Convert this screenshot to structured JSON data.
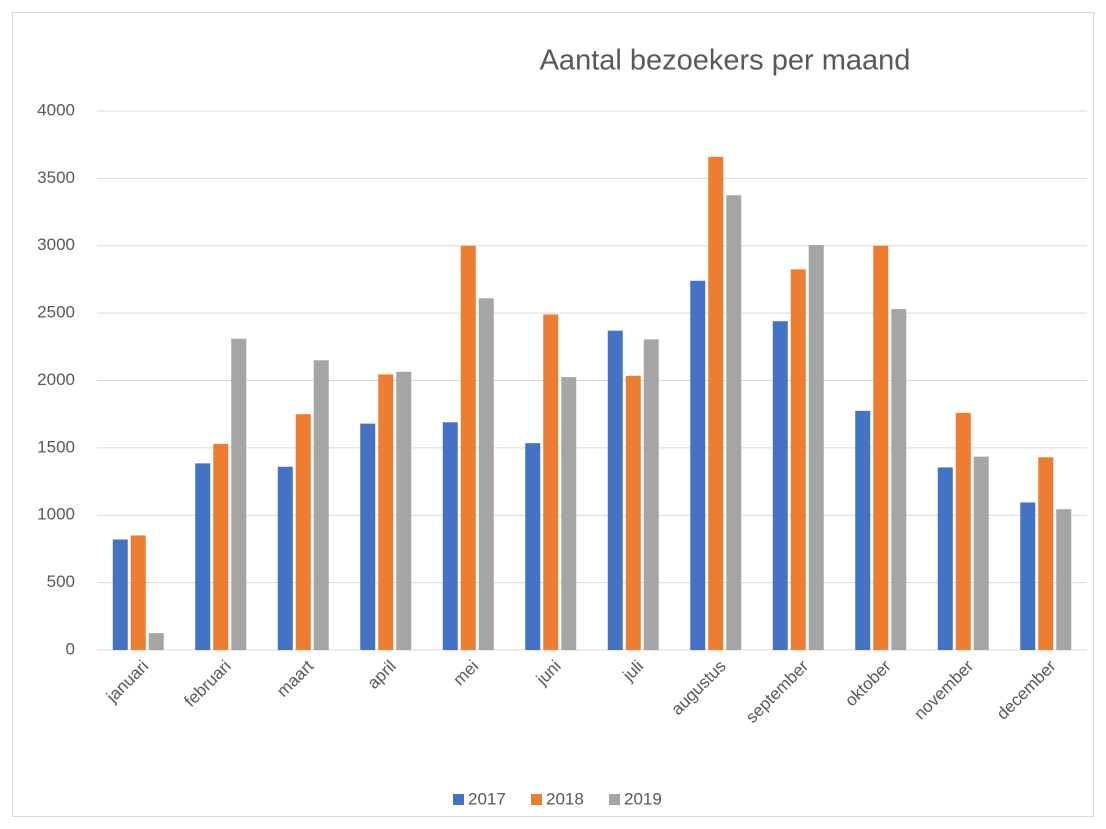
{
  "chart_data": {
    "type": "bar",
    "title": "Aantal bezoekers per maand",
    "categories": [
      "januari",
      "februari",
      "maart",
      "april",
      "mei",
      "juni",
      "juli",
      "augustus",
      "september",
      "oktober",
      "november",
      "december"
    ],
    "series": [
      {
        "name": "2017",
        "color": "#4472c4",
        "values": [
          820,
          1385,
          1360,
          1680,
          1690,
          1535,
          2370,
          2740,
          2440,
          1775,
          1355,
          1095
        ]
      },
      {
        "name": "2018",
        "color": "#ed7d31",
        "values": [
          850,
          1530,
          1750,
          2045,
          3000,
          2490,
          2035,
          3660,
          2825,
          3000,
          1760,
          1430
        ]
      },
      {
        "name": "2019",
        "color": "#a5a5a5",
        "values": [
          125,
          2310,
          2150,
          2065,
          2610,
          2025,
          2305,
          3375,
          3005,
          2530,
          1435,
          1045
        ]
      }
    ],
    "ylim": [
      0,
      4000
    ],
    "yticks": [
      0,
      500,
      1000,
      1500,
      2000,
      2500,
      3000,
      3500,
      4000
    ],
    "grid": true,
    "legend": "bottom"
  }
}
